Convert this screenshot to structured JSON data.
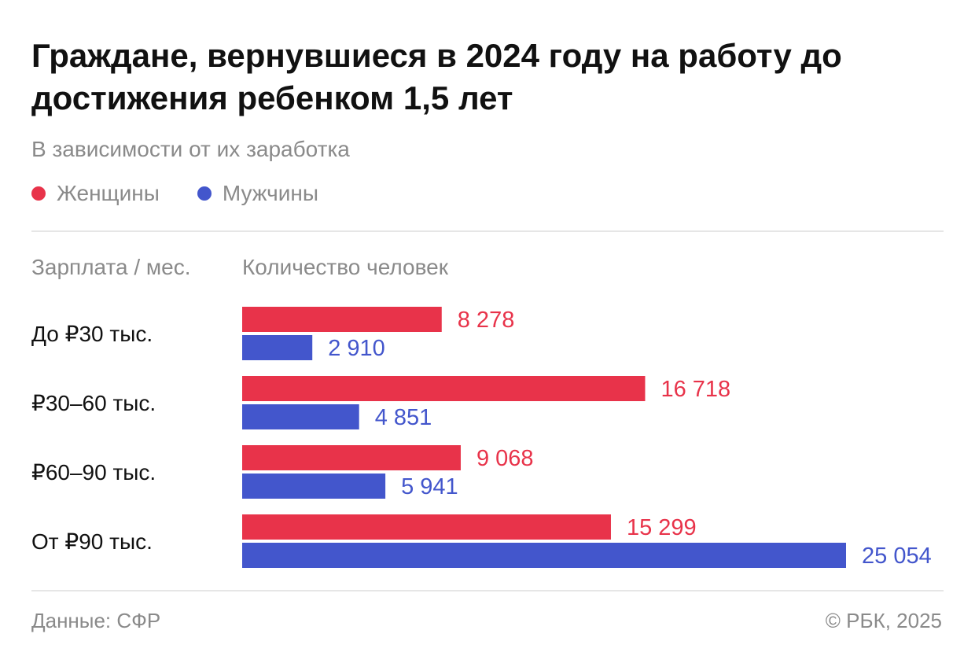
{
  "chart_data": {
    "type": "bar",
    "orientation": "horizontal",
    "title": "Граждане, вернувшиеся в 2024 году на работу до достижения ребенком 1,5 лет",
    "subtitle": "В зависимости от их заработка",
    "category_header": "Зарплата / мес.",
    "value_header": "Количество человек",
    "categories": [
      "До ₽30 тыс.",
      "₽30–60 тыс.",
      "₽60–90 тыс.",
      "От ₽90 тыс."
    ],
    "series": [
      {
        "name": "Женщины",
        "color": "#e8334a",
        "values": [
          8278,
          16718,
          9068,
          15299
        ],
        "labels": [
          "8 278",
          "16 718",
          "9 068",
          "15 299"
        ]
      },
      {
        "name": "Мужчины",
        "color": "#4356cc",
        "values": [
          2910,
          4851,
          5941,
          25054
        ],
        "labels": [
          "2 910",
          "4 851",
          "5 941",
          "25 054"
        ]
      }
    ],
    "xlim": [
      0,
      25054
    ],
    "legend_position": "top-left",
    "grid": false
  },
  "footer": {
    "source": "Данные: СФР",
    "copyright": "© РБК, 2025"
  }
}
